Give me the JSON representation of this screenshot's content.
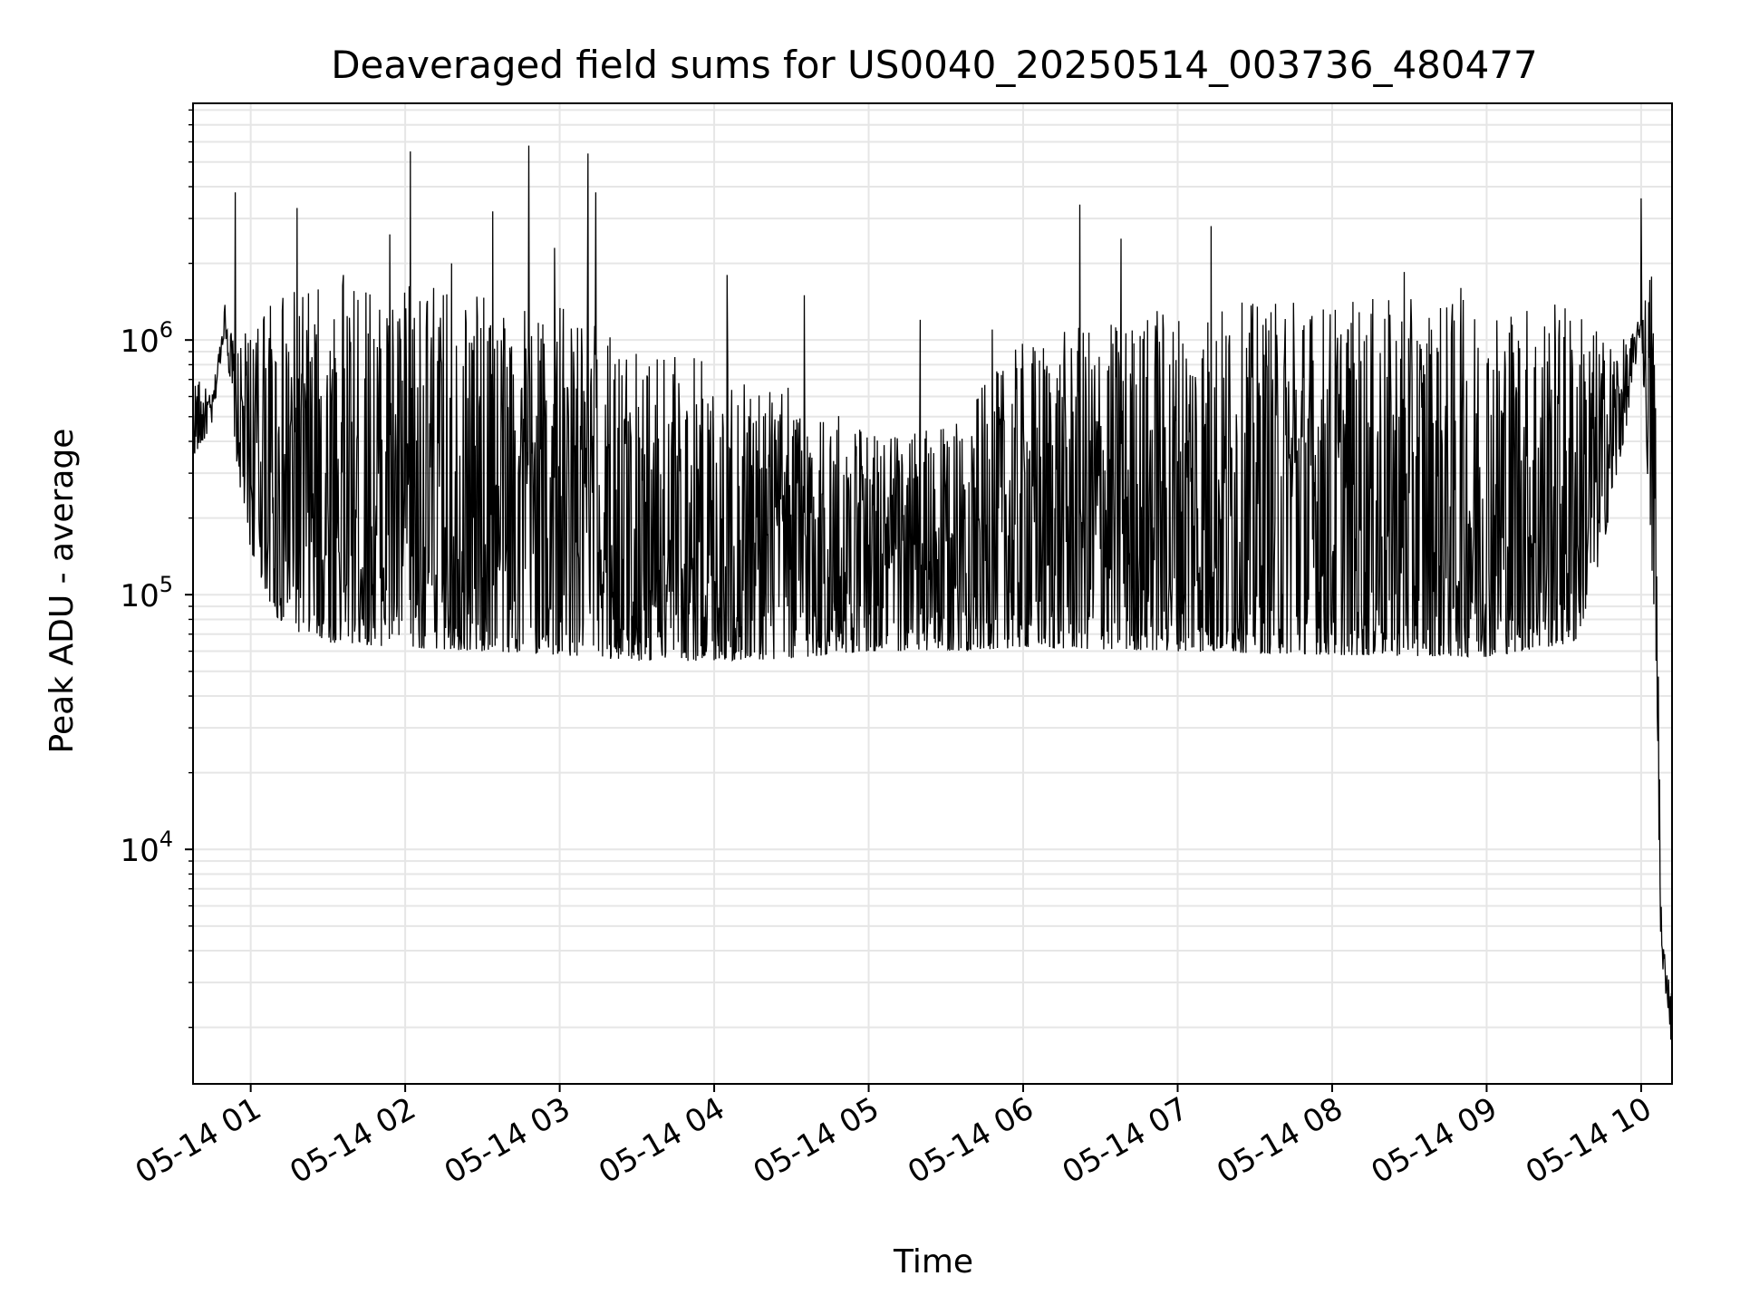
{
  "chart_data": {
    "type": "line",
    "title": "Deaveraged field sums for US0040_20250514_003736_480477",
    "xlabel": "Time",
    "ylabel": "Peak ADU - average",
    "x_ticks": [
      "05-14 01",
      "05-14 02",
      "05-14 03",
      "05-14 04",
      "05-14 05",
      "05-14 06",
      "05-14 07",
      "05-14 08",
      "05-14 09",
      "05-14 10"
    ],
    "y_scale": "log",
    "y_ticks": [
      {
        "value": 10000,
        "base": "10",
        "exp": "4"
      },
      {
        "value": 100000,
        "base": "10",
        "exp": "5"
      },
      {
        "value": 1000000,
        "base": "10",
        "exp": "6"
      }
    ],
    "xlim": [
      "2025-05-14 00:37:36",
      "2025-05-14 10:12:00"
    ],
    "ylim": [
      1200,
      8500000
    ],
    "grid": true,
    "line_color": "#000000",
    "grid_color": "#e6e6e6",
    "series": [
      {
        "x": [
          "2025-05-14 00:37:36",
          "2025-05-14 00:45:00",
          "2025-05-14 00:50:00",
          "2025-05-14 00:55:00",
          "2025-05-14 01:00:00",
          "2025-05-14 01:10:00",
          "2025-05-14 01:20:00",
          "2025-05-14 01:30:00",
          "2025-05-14 02:00:00",
          "2025-05-14 02:30:00",
          "2025-05-14 03:00:00",
          "2025-05-14 03:30:00",
          "2025-05-14 04:00:00",
          "2025-05-14 04:30:00",
          "2025-05-14 05:00:00",
          "2025-05-14 05:30:00",
          "2025-05-14 06:00:00",
          "2025-05-14 07:00:00",
          "2025-05-14 08:00:00",
          "2025-05-14 09:00:00",
          "2025-05-14 09:35:00",
          "2025-05-14 09:45:00",
          "2025-05-14 09:55:00",
          "2025-05-14 10:00:00",
          "2025-05-14 10:05:00",
          "2025-05-14 10:08:00",
          "2025-05-14 10:10:00",
          "2025-05-14 10:12:00"
        ],
        "low": [
          350000,
          450000,
          1100000,
          300000,
          150000,
          80000,
          70000,
          65000,
          62000,
          60000,
          58000,
          55000,
          55000,
          56000,
          60000,
          60000,
          62000,
          60000,
          58000,
          57000,
          65000,
          150000,
          500000,
          1100000,
          80000,
          3000,
          2600,
          1600
        ],
        "high": [
          750000,
          600000,
          1400000,
          900000,
          1200000,
          1500000,
          1600000,
          1650000,
          1650000,
          1550000,
          1350000,
          1000000,
          850000,
          650000,
          450000,
          450000,
          1000000,
          1400000,
          1450000,
          1450000,
          1450000,
          1050000,
          1000000,
          1250000,
          2500000,
          5000,
          3500,
          2800
        ],
        "spikes": [
          {
            "x": "2025-05-14 00:54:00",
            "y": 3800000
          },
          {
            "x": "2025-05-14 01:05:00",
            "y": 1200000
          },
          {
            "x": "2025-05-14 01:18:00",
            "y": 3300000
          },
          {
            "x": "2025-05-14 01:36:00",
            "y": 1800000
          },
          {
            "x": "2025-05-14 01:54:00",
            "y": 2600000
          },
          {
            "x": "2025-05-14 02:02:00",
            "y": 5500000
          },
          {
            "x": "2025-05-14 02:18:00",
            "y": 2000000
          },
          {
            "x": "2025-05-14 02:34:00",
            "y": 3200000
          },
          {
            "x": "2025-05-14 02:48:00",
            "y": 5800000
          },
          {
            "x": "2025-05-14 02:58:00",
            "y": 2300000
          },
          {
            "x": "2025-05-14 03:11:00",
            "y": 5400000
          },
          {
            "x": "2025-05-14 03:14:00",
            "y": 3800000
          },
          {
            "x": "2025-05-14 04:05:00",
            "y": 1800000
          },
          {
            "x": "2025-05-14 04:35:00",
            "y": 1500000
          },
          {
            "x": "2025-05-14 05:20:00",
            "y": 1200000
          },
          {
            "x": "2025-05-14 05:48:00",
            "y": 1100000
          },
          {
            "x": "2025-05-14 06:22:00",
            "y": 3400000
          },
          {
            "x": "2025-05-14 06:38:00",
            "y": 2500000
          },
          {
            "x": "2025-05-14 06:52:00",
            "y": 1300000
          },
          {
            "x": "2025-05-14 07:13:00",
            "y": 2800000
          },
          {
            "x": "2025-05-14 07:45:00",
            "y": 1400000
          },
          {
            "x": "2025-05-14 08:28:00",
            "y": 1850000
          },
          {
            "x": "2025-05-14 08:50:00",
            "y": 1600000
          },
          {
            "x": "2025-05-14 10:00:00",
            "y": 3600000
          }
        ]
      }
    ]
  }
}
